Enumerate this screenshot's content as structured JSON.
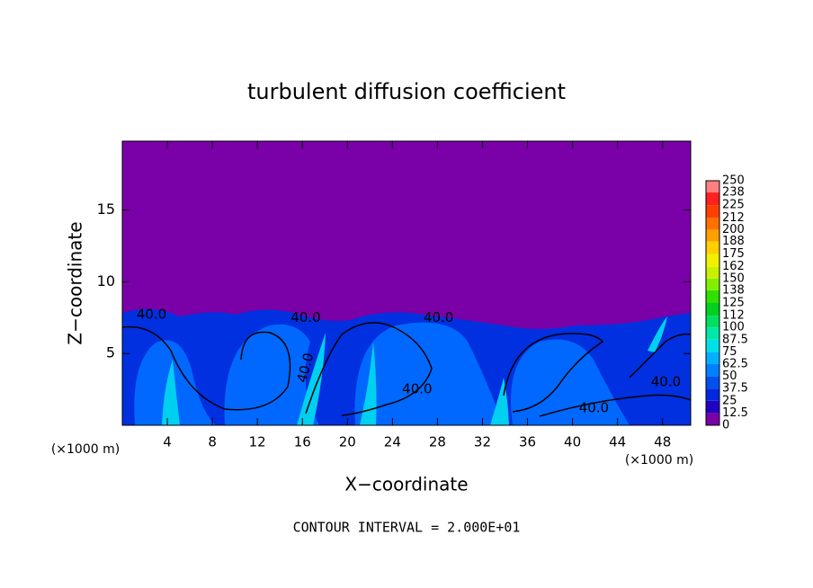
{
  "chart_data": {
    "type": "contour",
    "title": "turbulent diffusion coefficient",
    "x_label": "X−coordinate",
    "y_label": "Z−coordinate",
    "x_unit": "(×1000 m)",
    "footer": "CONTOUR INTERVAL = 2.000E+01",
    "xlim": [
      0,
      50.5
    ],
    "ylim": [
      0,
      19.8
    ],
    "xticks": [
      4,
      8,
      12,
      16,
      20,
      24,
      28,
      32,
      36,
      40,
      44,
      48
    ],
    "yticks": [
      5,
      10,
      15
    ],
    "colorbar": {
      "levels": [
        0,
        12.5,
        25,
        37.5,
        50,
        62.5,
        75,
        87.5,
        100,
        112,
        125,
        138,
        150,
        162,
        175,
        188,
        200,
        212,
        225,
        238,
        250
      ],
      "colors": [
        "#7a00a8",
        "#2400c0",
        "#0028e0",
        "#0050f0",
        "#0080ff",
        "#00b0ff",
        "#00e0e8",
        "#00e8a8",
        "#00e060",
        "#00d020",
        "#30e000",
        "#80f000",
        "#c8f000",
        "#f0f000",
        "#ffd000",
        "#ffa000",
        "#ff7000",
        "#ff4000",
        "#ff2020",
        "#ff8080"
      ]
    },
    "contour_labels": [
      {
        "value": 40,
        "label": "40.0",
        "x": 2.6,
        "z": 7.7
      },
      {
        "value": 40,
        "label": "40.0",
        "x": 16.3,
        "z": 7.5
      },
      {
        "value": 40,
        "label": "40.0",
        "x": 28.1,
        "z": 7.5
      },
      {
        "value": 40,
        "label": "40.0",
        "x": 16.3,
        "z": 4.0
      },
      {
        "value": 40,
        "label": "40.0",
        "x": 26.2,
        "z": 2.5
      },
      {
        "value": 40,
        "label": "40.0",
        "x": 41.9,
        "z": 1.2
      },
      {
        "value": 40,
        "label": "40.0",
        "x": 48.3,
        "z": 3.0
      }
    ]
  }
}
